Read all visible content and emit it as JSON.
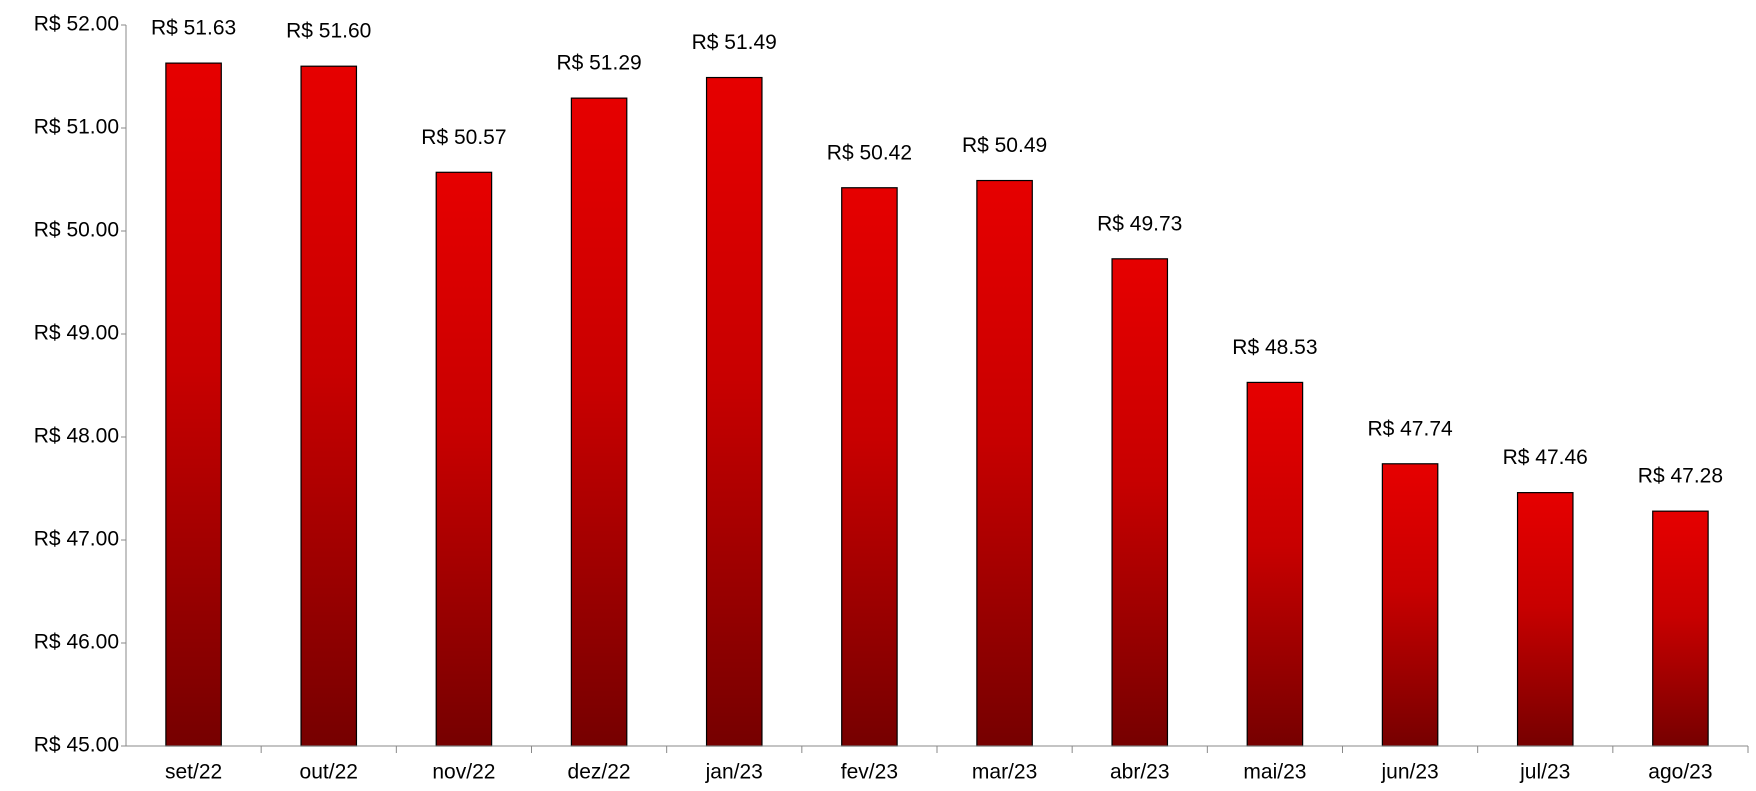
{
  "chart_data": {
    "type": "bar",
    "categories": [
      "set/22",
      "out/22",
      "nov/22",
      "dez/22",
      "jan/23",
      "fev/23",
      "mar/23",
      "abr/23",
      "mai/23",
      "jun/23",
      "jul/23",
      "ago/23"
    ],
    "values": [
      51.63,
      51.6,
      50.57,
      51.29,
      51.49,
      50.42,
      50.49,
      49.73,
      48.53,
      47.74,
      47.46,
      47.28
    ],
    "value_labels": [
      "R$ 51.63",
      "R$ 51.60",
      "R$ 50.57",
      "R$ 51.29",
      "R$ 51.49",
      "R$ 50.42",
      "R$ 50.49",
      "R$ 49.73",
      "R$ 48.53",
      "R$ 47.74",
      "R$ 47.46",
      "R$ 47.28"
    ],
    "color": "#e00000",
    "ylim": [
      45,
      52
    ],
    "yticks": [
      {
        "value": 45,
        "label": "R$ 45.00"
      },
      {
        "value": 46,
        "label": "R$ 46.00"
      },
      {
        "value": 47,
        "label": "R$ 47.00"
      },
      {
        "value": 48,
        "label": "R$ 48.00"
      },
      {
        "value": 49,
        "label": "R$ 49.00"
      },
      {
        "value": 50,
        "label": "R$ 50.00"
      },
      {
        "value": 51,
        "label": "R$ 51.00"
      },
      {
        "value": 52,
        "label": "R$ 52.00"
      }
    ],
    "grid": false
  }
}
